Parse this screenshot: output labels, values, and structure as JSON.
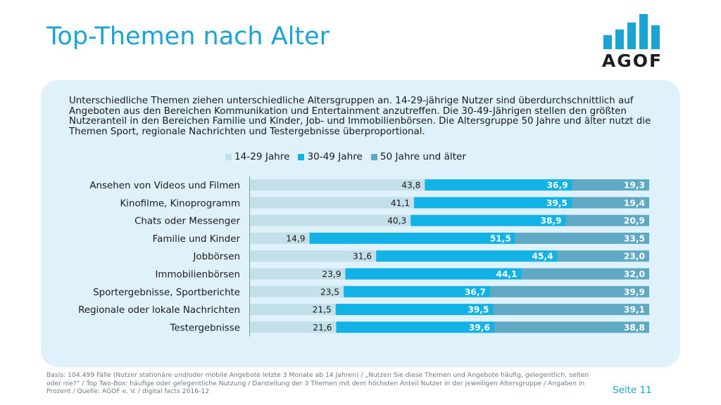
{
  "page": {
    "title": "Top-Themen nach Alter",
    "logo_text": "AGOF",
    "intro": "Unterschiedliche Themen ziehen unterschiedliche Altersgruppen an. 14-29-jährige Nutzer sind überdurchschnittlich auf Angeboten aus den Bereichen Kommunikation und Entertainment anzutreffen. Die 30-49-Jährigen stellen den größten Nutzeranteil in den Bereichen Familie und Kinder, Job- und Immobilienbörsen. Die Altersgruppe 50 Jahre und älter nutzt die Themen Sport, regionale Nachrichten und Testergebnisse überproportional.",
    "footnote": "Basis: 104.499 Fälle (Nutzer stationäre und/oder mobile Angebote letzte 3 Monate ab 14 Jahren) / „Nutzen Sie diese Themen und Angebote häufig, gelegentlich, selten oder nie?“ / Top Two-Box: häufige oder gelegentliche Nutzung / Darstellung der 3 Themen mit dem höchsten Anteil Nutzer in der jeweiligen Altersgruppe / Angaben in Prozent / Quelle: AGOF e. V. / digital facts 2016-12",
    "page_number": "Seite 11"
  },
  "colors": {
    "title": "#1aa3d3",
    "panel": "#dff1fb",
    "series": [
      "#c3dfe9",
      "#12b1e6",
      "#5fa9c4"
    ],
    "label_dark": "#1a1a1a",
    "label_light": "#ffffff"
  },
  "chart_data": {
    "type": "bar",
    "orientation": "horizontal",
    "stacked": true,
    "normalized": true,
    "categories": [
      "Ansehen von Videos und Filmen",
      "Kinofilme, Kinoprogramm",
      "Chats oder Messenger",
      "Familie und Kinder",
      "Jobbörsen",
      "Immobilienbörsen",
      "Sportergebnisse, Sportberichte",
      "Regionale oder lokale Nachrichten",
      "Testergebnisse"
    ],
    "series": [
      {
        "name": "14-29 Jahre",
        "values": [
          43.8,
          41.1,
          40.3,
          14.9,
          31.6,
          23.9,
          23.5,
          21.5,
          21.6
        ]
      },
      {
        "name": "30-49 Jahre",
        "values": [
          36.9,
          39.5,
          38.9,
          51.5,
          45.4,
          44.1,
          36.7,
          39.5,
          39.6
        ]
      },
      {
        "name": "50 Jahre und älter",
        "values": [
          19.3,
          19.4,
          20.9,
          33.5,
          23.0,
          32.0,
          39.9,
          39.1,
          38.8
        ]
      }
    ],
    "legend_position": "top",
    "grid": false
  }
}
